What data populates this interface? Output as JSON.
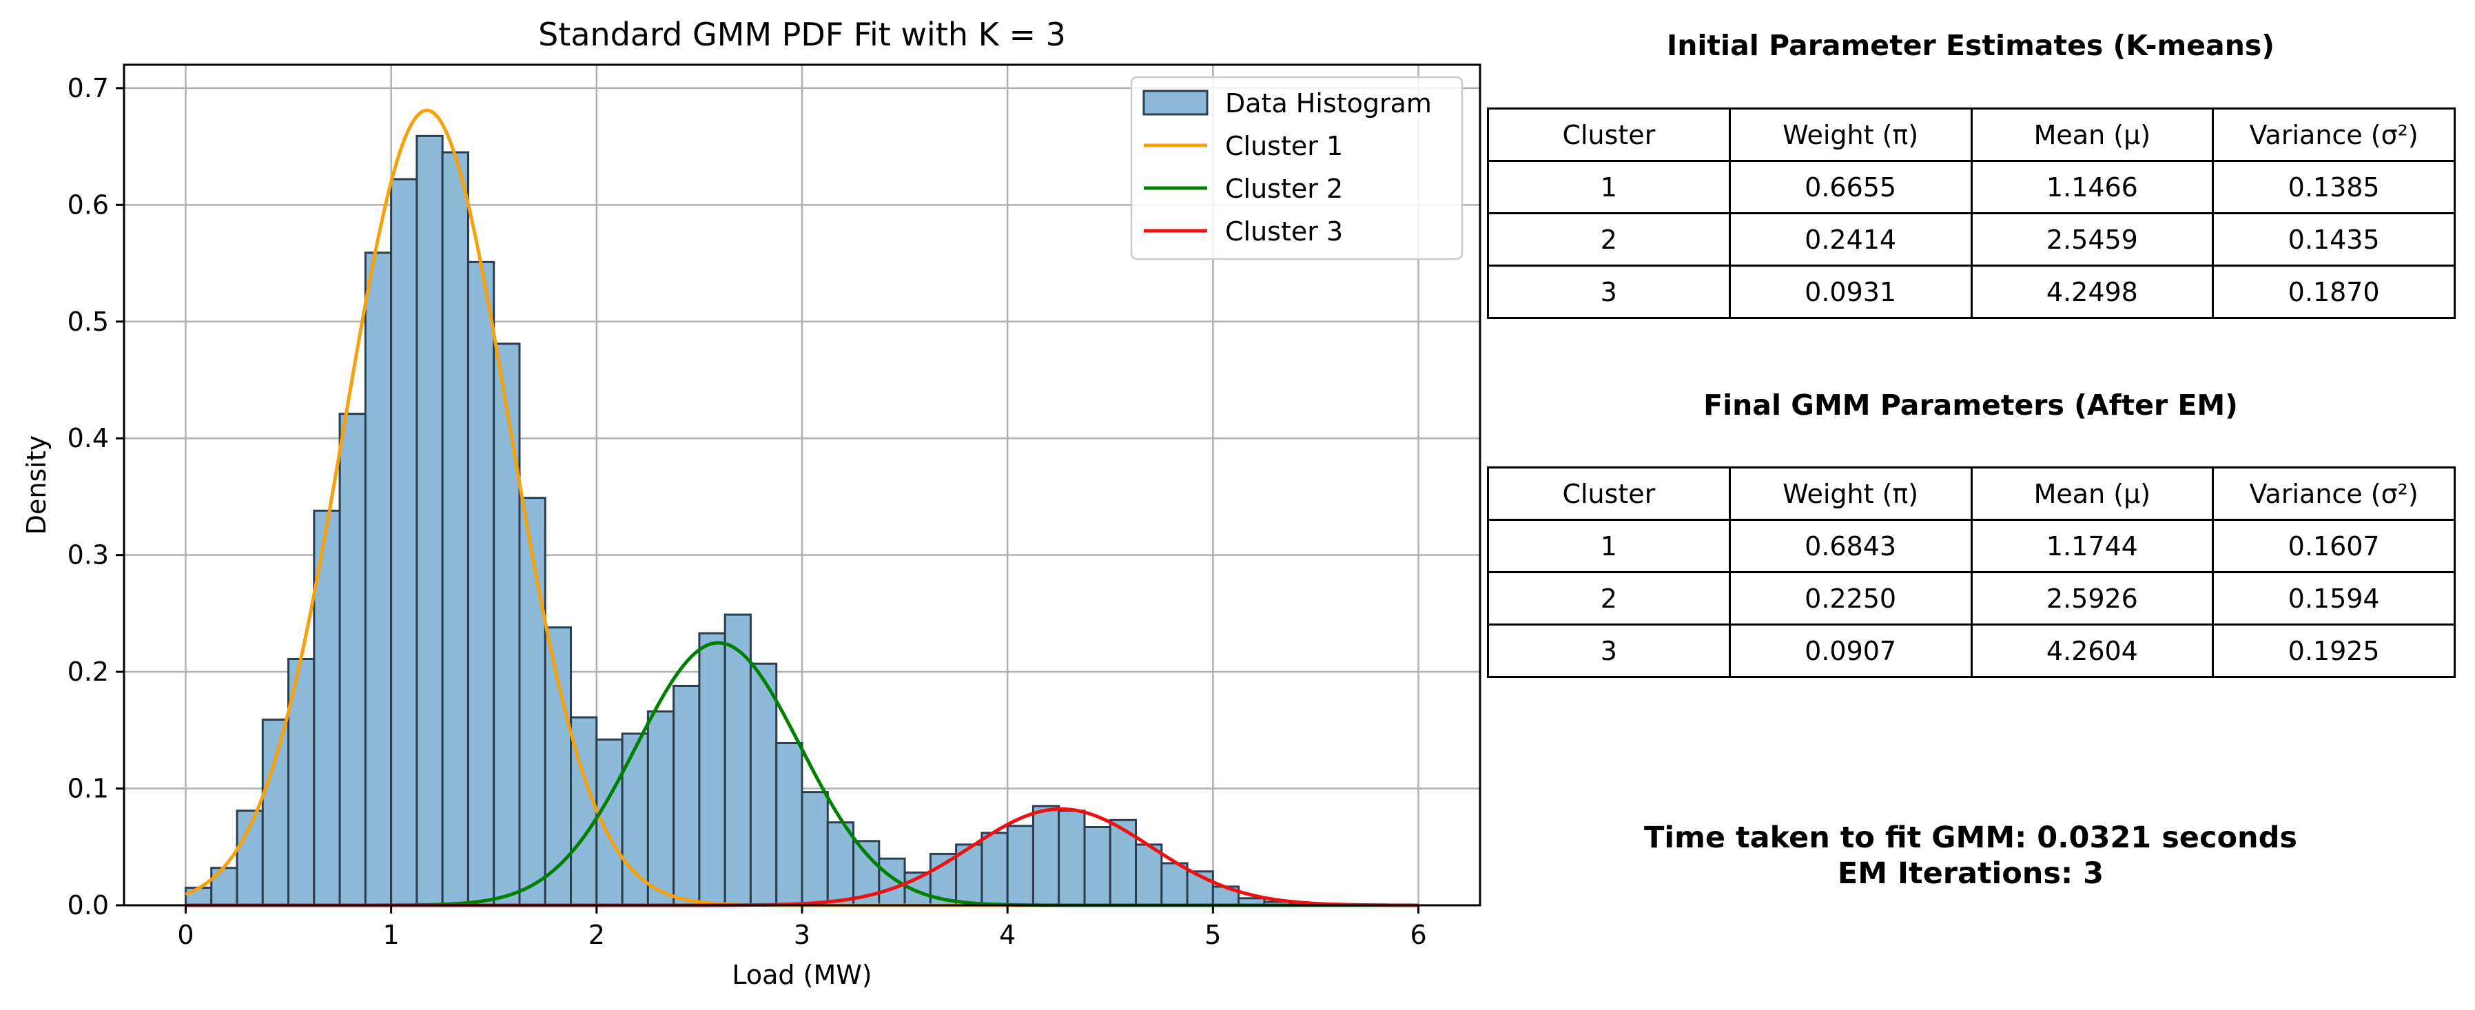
{
  "chart_data": {
    "type": "histogram",
    "title": "Standard GMM PDF Fit with K = 3",
    "xlabel": "Load (MW)",
    "ylabel": "Density",
    "xlim": [
      -0.3,
      6.3
    ],
    "ylim": [
      0,
      0.72
    ],
    "xticks": [
      0,
      1,
      2,
      3,
      4,
      5,
      6
    ],
    "yticks": [
      0.0,
      0.1,
      0.2,
      0.3,
      0.4,
      0.5,
      0.6,
      0.7
    ],
    "grid": true,
    "legend_position": "top-right",
    "histogram": {
      "name": "Data Histogram",
      "color": "#8dbad9",
      "edge_color": "#2b3d4f",
      "bin_start": 0.0,
      "bin_width": 0.125,
      "densities": [
        0.015,
        0.032,
        0.081,
        0.159,
        0.211,
        0.338,
        0.421,
        0.559,
        0.622,
        0.659,
        0.645,
        0.551,
        0.481,
        0.349,
        0.238,
        0.161,
        0.142,
        0.147,
        0.166,
        0.188,
        0.233,
        0.249,
        0.207,
        0.139,
        0.097,
        0.071,
        0.055,
        0.04,
        0.028,
        0.044,
        0.052,
        0.062,
        0.068,
        0.085,
        0.081,
        0.067,
        0.073,
        0.052,
        0.036,
        0.029,
        0.016,
        0.006,
        0.003,
        0.001,
        0.0
      ]
    },
    "series": [
      {
        "name": "Cluster 1",
        "color": "#f5a20e",
        "weight": 0.6843,
        "mean": 1.1744,
        "variance": 0.1607
      },
      {
        "name": "Cluster 2",
        "color": "#008000",
        "weight": 0.225,
        "mean": 2.5926,
        "variance": 0.1594
      },
      {
        "name": "Cluster 3",
        "color": "#ee1111",
        "weight": 0.0907,
        "mean": 4.2604,
        "variance": 0.1925
      }
    ]
  },
  "initial_table": {
    "title": "Initial Parameter Estimates (K-means)",
    "headers": [
      "Cluster",
      "Weight (π)",
      "Mean (μ)",
      "Variance (σ²)"
    ],
    "rows": [
      [
        "1",
        "0.6655",
        "1.1466",
        "0.1385"
      ],
      [
        "2",
        "0.2414",
        "2.5459",
        "0.1435"
      ],
      [
        "3",
        "0.0931",
        "4.2498",
        "0.1870"
      ]
    ]
  },
  "final_table": {
    "title": "Final GMM Parameters (After EM)",
    "headers": [
      "Cluster",
      "Weight (π)",
      "Mean (μ)",
      "Variance (σ²)"
    ],
    "rows": [
      [
        "1",
        "0.6843",
        "1.1744",
        "0.1607"
      ],
      [
        "2",
        "0.2250",
        "2.5926",
        "0.1594"
      ],
      [
        "3",
        "0.0907",
        "4.2604",
        "0.1925"
      ]
    ]
  },
  "timing": {
    "time_text": "Time taken to fit GMM: 0.0321 seconds",
    "iterations_text": "EM Iterations: 3"
  }
}
